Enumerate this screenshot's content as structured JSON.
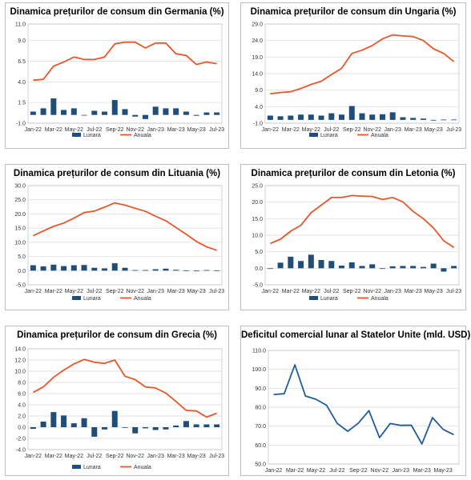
{
  "colors": {
    "bar": "#1f4e79",
    "line": "#e8562a",
    "deficit_line": "#1f5c99",
    "grid": "#d9d9d9",
    "axis": "#bfbfbf"
  },
  "chart_data": [
    {
      "type": "bar+line",
      "title": "Dinamica prețurilor de consum din Germania (%)",
      "categories": [
        "Jan-22",
        "Feb-22",
        "Mar-22",
        "Apr-22",
        "May-22",
        "Jun-22",
        "Jul-22",
        "Aug-22",
        "Sep-22",
        "Oct-22",
        "Nov-22",
        "Dec-22",
        "Jan-23",
        "Feb-23",
        "Mar-23",
        "Apr-23",
        "May-23",
        "Jun-23",
        "Jul-23"
      ],
      "x_tick_labels": [
        "Jan-22",
        "Mar-22",
        "May-22",
        "Jul-22",
        "Sep-22",
        "Nov-22",
        "Jan-23",
        "Mar-23",
        "May-23",
        "Jul-23"
      ],
      "ylim": [
        -1.0,
        11.0
      ],
      "y_ticks": [
        "-1.0",
        "1.5",
        "4.0",
        "6.5",
        "9.0",
        "11.0"
      ],
      "series": [
        {
          "name": "Lunara",
          "kind": "bar",
          "values": [
            0.4,
            0.8,
            2.0,
            0.6,
            0.8,
            0.0,
            0.5,
            0.4,
            1.8,
            0.7,
            -0.2,
            -0.5,
            1.0,
            0.8,
            0.8,
            0.4,
            -0.1,
            0.3,
            0.3
          ]
        },
        {
          "name": "Anuala",
          "kind": "line",
          "values": [
            4.2,
            4.3,
            5.9,
            6.4,
            7.0,
            6.7,
            6.7,
            7.0,
            8.6,
            8.8,
            8.8,
            8.1,
            8.7,
            8.7,
            7.4,
            7.2,
            6.1,
            6.4,
            6.2
          ]
        }
      ],
      "legend": "bottom-center",
      "grid": "horizontal"
    },
    {
      "type": "bar+line",
      "title": "Dinamica prețurilor de consum din Ungaria (%)",
      "categories": [
        "Jan-22",
        "Feb-22",
        "Mar-22",
        "Apr-22",
        "May-22",
        "Jun-22",
        "Jul-22",
        "Aug-22",
        "Sep-22",
        "Oct-22",
        "Nov-22",
        "Dec-22",
        "Jan-23",
        "Feb-23",
        "Mar-23",
        "Apr-23",
        "May-23",
        "Jun-23",
        "Jul-23"
      ],
      "x_tick_labels": [
        "Jan-22",
        "Mar-22",
        "May-22",
        "Jul-22",
        "Sep-22",
        "Nov-22",
        "Jan-23",
        "Mar-23",
        "May-23",
        "Jul-23"
      ],
      "ylim": [
        -1.0,
        29.0
      ],
      "y_ticks": [
        "-1.0",
        "4.0",
        "9.0",
        "14.0",
        "19.0",
        "24.0",
        "29.0"
      ],
      "series": [
        {
          "name": "Lunara",
          "kind": "bar",
          "values": [
            1.3,
            1.1,
            1.3,
            1.6,
            1.6,
            1.3,
            2.0,
            1.6,
            4.2,
            2.0,
            1.6,
            1.7,
            2.3,
            0.8,
            0.6,
            0.4,
            -0.2,
            0.1,
            0.1
          ]
        },
        {
          "name": "Anuala",
          "kind": "line",
          "values": [
            7.9,
            8.3,
            8.5,
            9.5,
            10.7,
            11.7,
            13.7,
            15.6,
            20.1,
            21.1,
            22.5,
            24.5,
            25.7,
            25.4,
            25.2,
            24.0,
            21.5,
            20.1,
            17.6
          ]
        }
      ],
      "legend": "bottom-center",
      "grid": "horizontal"
    },
    {
      "type": "bar+line",
      "title": "Dinamica prețurilor de consum din Lituania (%)",
      "categories": [
        "Jan-22",
        "Feb-22",
        "Mar-22",
        "Apr-22",
        "May-22",
        "Jun-22",
        "Jul-22",
        "Aug-22",
        "Sep-22",
        "Oct-22",
        "Nov-22",
        "Dec-22",
        "Jan-23",
        "Feb-23",
        "Mar-23",
        "Apr-23",
        "May-23",
        "Jun-23",
        "Jul-23"
      ],
      "x_tick_labels": [
        "Jan-22",
        "Mar-22",
        "May-22",
        "Jul-22",
        "Sep-22",
        "Nov-22",
        "Jan-23",
        "Mar-23",
        "May-23",
        "Jul-23"
      ],
      "ylim": [
        -5.0,
        30.0
      ],
      "y_ticks": [
        "-5.0",
        "0.0",
        "5.0",
        "10.0",
        "15.0",
        "20.0",
        "25.0",
        "30.0"
      ],
      "series": [
        {
          "name": "Lunara",
          "kind": "bar",
          "values": [
            1.9,
            1.5,
            2.1,
            1.6,
            1.9,
            2.0,
            1.0,
            0.8,
            2.6,
            1.0,
            0.2,
            0.2,
            0.5,
            0.7,
            0.3,
            0.1,
            -0.1,
            0.2,
            0.1
          ]
        },
        {
          "name": "Anuala",
          "kind": "line",
          "values": [
            12.3,
            14.0,
            15.6,
            16.8,
            18.5,
            20.5,
            21.0,
            22.4,
            23.9,
            23.1,
            22.0,
            20.9,
            19.2,
            17.6,
            15.2,
            12.8,
            10.3,
            8.4,
            7.2
          ]
        }
      ],
      "legend": "bottom-center",
      "grid": "horizontal"
    },
    {
      "type": "bar+line",
      "title": "Dinamica prețurilor de consum din Letonia (%)",
      "categories": [
        "Jan-22",
        "Feb-22",
        "Mar-22",
        "Apr-22",
        "May-22",
        "Jun-22",
        "Jul-22",
        "Aug-22",
        "Sep-22",
        "Oct-22",
        "Nov-22",
        "Dec-22",
        "Jan-23",
        "Feb-23",
        "Mar-23",
        "Apr-23",
        "May-23",
        "Jun-23",
        "Jul-23"
      ],
      "x_tick_labels": [
        "Jan-22",
        "Mar-22",
        "May-22",
        "Jul-22",
        "Sep-22",
        "Nov-22",
        "Jan-23",
        "Mar-23",
        "May-23",
        "Jul-23"
      ],
      "ylim": [
        -5.0,
        25.0
      ],
      "y_ticks": [
        "-5.0",
        "0.0",
        "5.0",
        "10.0",
        "15.0",
        "20.0",
        "25.0"
      ],
      "series": [
        {
          "name": "Lunara",
          "kind": "bar",
          "values": [
            0.0,
            1.7,
            3.5,
            2.2,
            4.1,
            2.5,
            2.2,
            0.8,
            1.8,
            0.7,
            1.2,
            -0.2,
            0.6,
            0.7,
            0.7,
            0.4,
            1.4,
            -1.0,
            0.7
          ]
        },
        {
          "name": "Anuala",
          "kind": "line",
          "values": [
            7.5,
            8.8,
            11.2,
            13.0,
            16.8,
            19.1,
            21.4,
            21.4,
            22.0,
            21.8,
            21.7,
            20.8,
            21.4,
            20.1,
            17.2,
            15.0,
            12.2,
            8.3,
            6.3
          ]
        }
      ],
      "legend": "bottom-center",
      "grid": "horizontal"
    },
    {
      "type": "bar+line",
      "title": "Dinamica prețurilor de consum din Grecia (%)",
      "categories": [
        "Jan-22",
        "Feb-22",
        "Mar-22",
        "Apr-22",
        "May-22",
        "Jun-22",
        "Jul-22",
        "Aug-22",
        "Sep-22",
        "Oct-22",
        "Nov-22",
        "Dec-22",
        "Jan-23",
        "Feb-23",
        "Mar-23",
        "Apr-23",
        "May-23",
        "Jun-23",
        "Jul-23"
      ],
      "x_tick_labels": [
        "Jan-22",
        "Mar-22",
        "May-22",
        "Jul-22",
        "Sep-22",
        "Nov-22",
        "Jan-23",
        "Mar-23",
        "May-23",
        "Jul-23"
      ],
      "ylim": [
        -4.0,
        14.0
      ],
      "y_ticks": [
        "-4.0",
        "-2.0",
        "0.0",
        "2.0",
        "4.0",
        "6.0",
        "8.0",
        "10.0",
        "12.0",
        "14.0"
      ],
      "series": [
        {
          "name": "Lunara",
          "kind": "bar",
          "values": [
            -0.3,
            1.0,
            2.7,
            2.1,
            0.7,
            1.6,
            -1.7,
            -0.4,
            2.9,
            -0.1,
            -1.1,
            -0.2,
            -0.5,
            -0.4,
            0.3,
            1.1,
            0.5,
            0.5,
            0.5
          ]
        },
        {
          "name": "Anuala",
          "kind": "line",
          "values": [
            6.2,
            7.2,
            8.9,
            10.2,
            11.3,
            12.1,
            11.6,
            11.4,
            12.0,
            9.1,
            8.5,
            7.2,
            7.0,
            6.1,
            4.6,
            3.0,
            2.9,
            1.8,
            2.5
          ]
        }
      ],
      "legend": "bottom-center",
      "grid": "horizontal"
    },
    {
      "type": "line",
      "title": "Deficitul comercial lunar al Statelor Unite (mld. USD)",
      "categories": [
        "Jan-22",
        "Feb-22",
        "Mar-22",
        "Apr-22",
        "May-22",
        "Jun-22",
        "Jul-22",
        "Aug-22",
        "Sep-22",
        "Oct-22",
        "Nov-22",
        "Dec-22",
        "Jan-23",
        "Feb-23",
        "Mar-23",
        "Apr-23",
        "May-23",
        "Jun-23"
      ],
      "x_tick_labels": [
        "Jan-22",
        "Mar-22",
        "May-22",
        "Jul-22",
        "Sep-22",
        "Nov-22",
        "Jan-23",
        "Mar-23",
        "May-23"
      ],
      "ylim": [
        50.0,
        110.0
      ],
      "y_ticks": [
        "50.0",
        "60.0",
        "70.0",
        "80.0",
        "90.0",
        "100.0",
        "110.0"
      ],
      "series": [
        {
          "kind": "line",
          "values": [
            86.7,
            87.1,
            102.4,
            85.9,
            84.2,
            81.0,
            71.5,
            67.3,
            71.6,
            78.2,
            63.9,
            71.4,
            70.4,
            70.5,
            60.6,
            74.5,
            68.3,
            65.5
          ]
        }
      ],
      "legend": "none",
      "grid": "horizontal"
    }
  ]
}
